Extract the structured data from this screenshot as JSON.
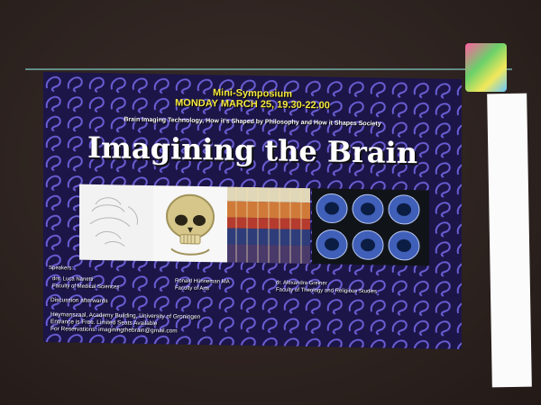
{
  "slide": {
    "mini_symposium": "Mini-Symposium",
    "date_time": "MONDAY MARCH 25, 19.30-22.00",
    "subtitle": "Brain Imaging Technology, How it's Shaped by Philosophy and How it Shapes Society",
    "title": "Imagining the Brain",
    "speakers_label": "Speakers:",
    "speakers": [
      {
        "name": "drs. Luca Nanetti",
        "faculty": "Faculty of Medical Sciences"
      },
      {
        "name": "Ronald Hünneman MA",
        "faculty": "Faculty of Arts"
      },
      {
        "name": "dr. Alexandra Greiner",
        "faculty": "Faculty of Theology and Religious Studies"
      }
    ],
    "discussion": "Discussion afterwards",
    "location": "Heymanszaal, Academy Building, University of Groningen",
    "entrance": "Entrance is Free. Limited Seats Available",
    "reservations": "For Reservations: imaginingthebrain@gmail.com"
  },
  "colors": {
    "slide_bg": "#1c1548",
    "pattern": "#6a5fd6",
    "heading": "#f7e93d"
  }
}
